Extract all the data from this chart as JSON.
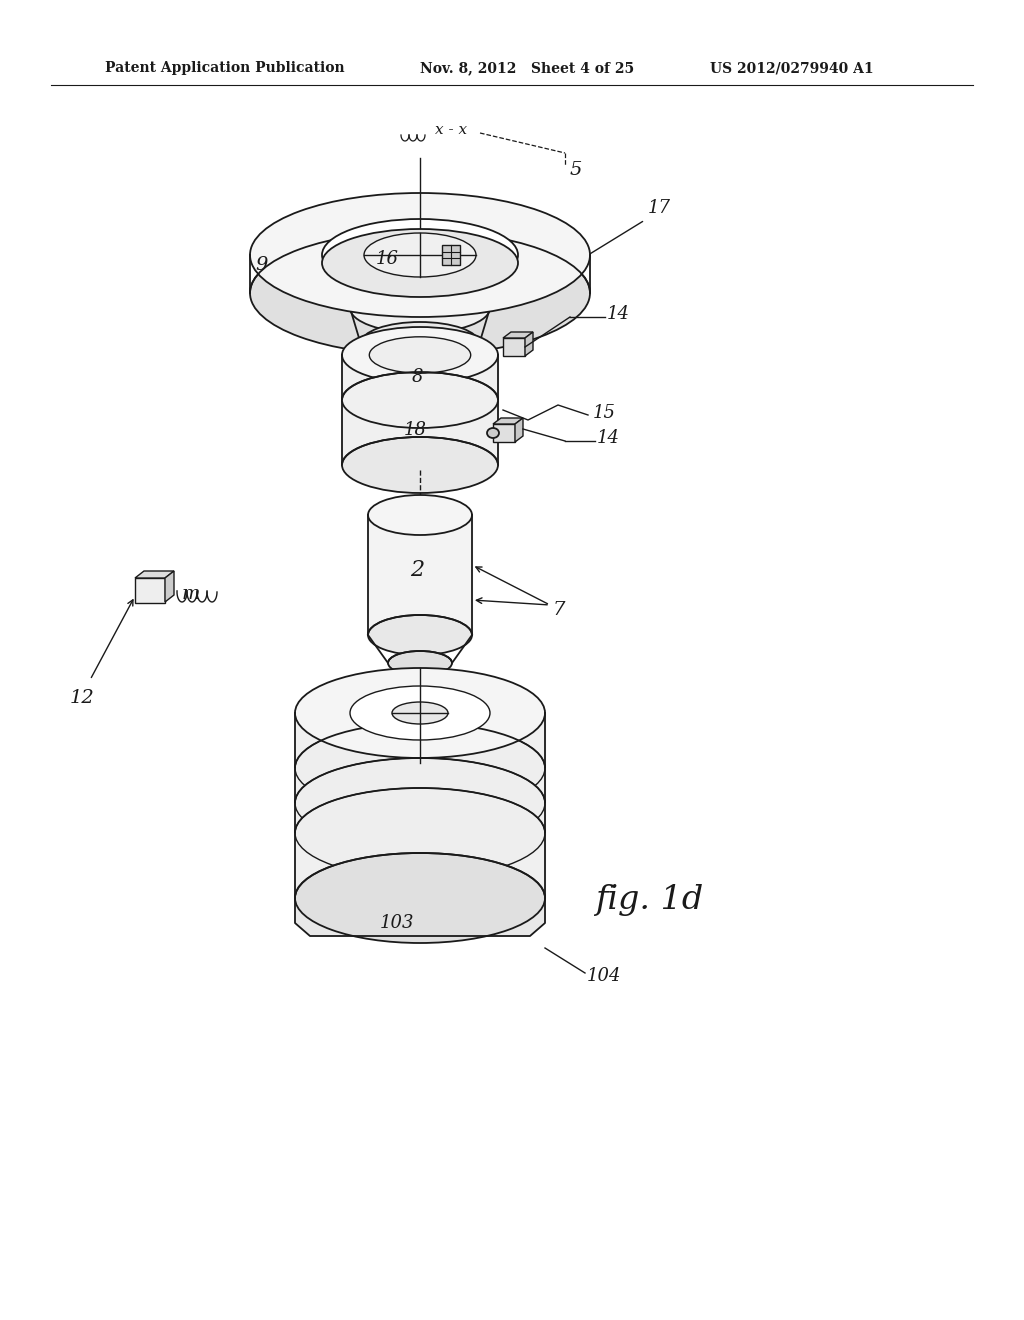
{
  "bg_color": "#ffffff",
  "line_color": "#1a1a1a",
  "header_left": "Patent Application Publication",
  "header_mid": "Nov. 8, 2012   Sheet 4 of 25",
  "header_right": "US 2012/0279940 A1",
  "fig_label": "fig. 1d"
}
